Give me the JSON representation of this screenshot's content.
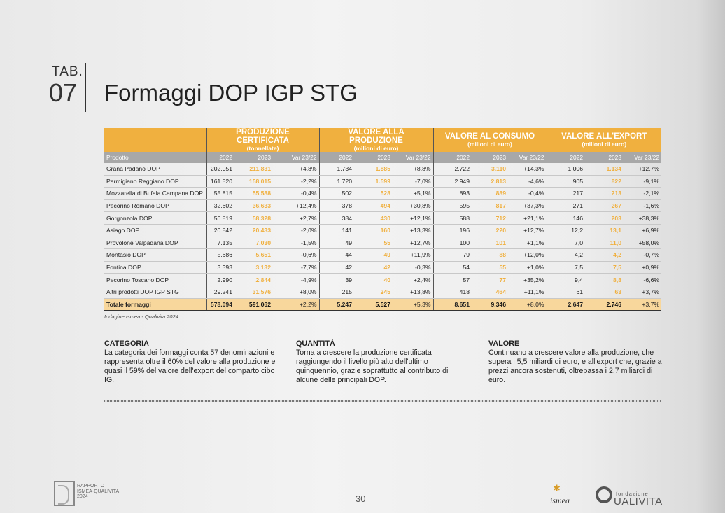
{
  "header": {
    "tab_label": "TAB.",
    "tab_number": "07",
    "title": "Formaggi DOP IGP STG"
  },
  "table": {
    "groups": [
      {
        "title": "PRODUZIONE CERTIFICATA",
        "unit": "(tonnellate)"
      },
      {
        "title": "VALORE ALLA PRODUZIONE",
        "unit": "(milioni di euro)"
      },
      {
        "title": "VALORE AL CONSUMO",
        "unit": "(milioni di euro)"
      },
      {
        "title": "VALORE ALL'EXPORT",
        "unit": "(milioni di euro)"
      }
    ],
    "product_header": "Prodotto",
    "subheaders": [
      "2022",
      "2023",
      "Var 23/22"
    ],
    "rows": [
      {
        "name": "Grana Padano DOP",
        "values": [
          "202.051",
          "211.831",
          "+4,8%",
          "1.734",
          "1.885",
          "+8,8%",
          "2.722",
          "3.110",
          "+14,3%",
          "1.006",
          "1.134",
          "+12,7%"
        ]
      },
      {
        "name": "Parmigiano Reggiano DOP",
        "values": [
          "161.520",
          "158.015",
          "-2,2%",
          "1.720",
          "1.599",
          "-7,0%",
          "2.949",
          "2.813",
          "-4,6%",
          "905",
          "822",
          "-9,1%"
        ]
      },
      {
        "name": "Mozzarella di Bufala Campana DOP",
        "values": [
          "55.815",
          "55.588",
          "-0,4%",
          "502",
          "528",
          "+5,1%",
          "893",
          "889",
          "-0,4%",
          "217",
          "213",
          "-2,1%"
        ]
      },
      {
        "name": "Pecorino Romano DOP",
        "values": [
          "32.602",
          "36.633",
          "+12,4%",
          "378",
          "494",
          "+30,8%",
          "595",
          "817",
          "+37,3%",
          "271",
          "267",
          "-1,6%"
        ]
      },
      {
        "name": "Gorgonzola DOP",
        "values": [
          "56.819",
          "58.328",
          "+2,7%",
          "384",
          "430",
          "+12,1%",
          "588",
          "712",
          "+21,1%",
          "146",
          "203",
          "+38,3%"
        ]
      },
      {
        "name": "Asiago DOP",
        "values": [
          "20.842",
          "20.433",
          "-2,0%",
          "141",
          "160",
          "+13,3%",
          "196",
          "220",
          "+12,7%",
          "12,2",
          "13,1",
          "+6,9%"
        ]
      },
      {
        "name": "Provolone Valpadana DOP",
        "values": [
          "7.135",
          "7.030",
          "-1,5%",
          "49",
          "55",
          "+12,7%",
          "100",
          "101",
          "+1,1%",
          "7,0",
          "11,0",
          "+58,0%"
        ]
      },
      {
        "name": "Montasio DOP",
        "values": [
          "5.686",
          "5.651",
          "-0,6%",
          "44",
          "49",
          "+11,9%",
          "79",
          "88",
          "+12,0%",
          "4,2",
          "4,2",
          "-0,7%"
        ]
      },
      {
        "name": "Fontina DOP",
        "values": [
          "3.393",
          "3.132",
          "-7,7%",
          "42",
          "42",
          "-0,3%",
          "54",
          "55",
          "+1,0%",
          "7,5",
          "7,5",
          "+0,9%"
        ]
      },
      {
        "name": "Pecorino Toscano DOP",
        "values": [
          "2.990",
          "2.844",
          "-4,9%",
          "39",
          "40",
          "+2,4%",
          "57",
          "77",
          "+35,2%",
          "9,4",
          "8,8",
          "-6,6%"
        ]
      },
      {
        "name": "Altri prodotti DOP IGP STG",
        "values": [
          "29.241",
          "31.576",
          "+8,0%",
          "215",
          "245",
          "+13,8%",
          "418",
          "464",
          "+11,1%",
          "61",
          "63",
          "+3,7%"
        ]
      }
    ],
    "total": {
      "name": "Totale formaggi",
      "values": [
        "578.094",
        "591.062",
        "+2,2%",
        "5.247",
        "5.527",
        "+5,3%",
        "8.651",
        "9.346",
        "+8,0%",
        "2.647",
        "2.746",
        "+3,7%"
      ]
    },
    "source": "Indagine Ismea - Qualivita 2024"
  },
  "columns": [
    {
      "heading": "CATEGORIA",
      "text": "La categoria dei formaggi conta 57 denominazioni e rappresenta oltre il 60% del valore alla produzione e quasi il 59% del valore dell'export del comparto cibo IG."
    },
    {
      "heading": "QUANTITÀ",
      "text": "Torna a crescere la produzione certificata raggiungendo il livello più alto dell'ultimo quinquennio, grazie soprattutto al contributo di alcune delle principali DOP."
    },
    {
      "heading": "VALORE",
      "text": "Continuano a crescere valore alla produzione, che supera i 5,5 miliardi di euro, e all'export che, grazie a prezzi ancora sostenuti, oltrepassa i 2,7 miliardi di euro."
    }
  ],
  "footer": {
    "report_line1": "RAPPORTO",
    "report_line2": "ISMEA-QUALIVITA",
    "report_line3": "2024",
    "page_number": "30",
    "ismea_logo": "ismea",
    "fondazione": "fondazione",
    "qualivita": "UALIVITA"
  },
  "colors": {
    "accent": "#f0b03f",
    "subheader": "#a8a8a8",
    "total_row": "#f8d79c"
  }
}
